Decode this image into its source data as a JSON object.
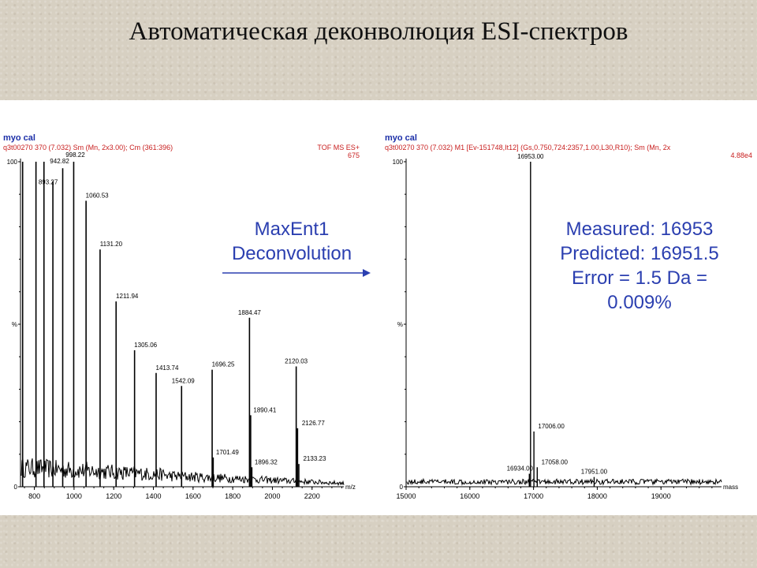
{
  "slide": {
    "title": "Автоматическая деконволюция ESI-спектров"
  },
  "middle": {
    "method_line1": "MaxEnt1",
    "method_line2": "Deconvolution"
  },
  "result": {
    "line1": "Measured:  16953",
    "line2": "Predicted:  16951.5",
    "line3": "Error = 1.5 Da =",
    "line4": "0.009%"
  },
  "left_spectrum": {
    "sample": "myo cal",
    "scan_info": "q3t00270  370 (7.032) Sm (Mn, 2x3.00); Cm (361:396)",
    "mode": "TOF MS ES+",
    "intensity": "675"
  },
  "right_spectrum": {
    "sample": "myo cal",
    "scan_info": "q3t00270  370 (7.032) M1 [Ev-151748,It12] (Gs,0.750,724:2357,1.00,L30,R10); Sm (Mn, 2x",
    "intensity": "4.88e4"
  },
  "colors": {
    "accent_blue": "#2b3fb0",
    "header_blue": "#1c2fa8",
    "header_red": "#c81e1e",
    "trace": "#000000",
    "page": "#d7d0c2"
  },
  "chart_data": [
    {
      "type": "line",
      "title": "",
      "xlabel": "m/z",
      "ylabel": "%",
      "xlim": [
        730,
        2360
      ],
      "ylim": [
        0,
        100
      ],
      "x_ticks": [
        800,
        1000,
        1200,
        1400,
        1600,
        1800,
        2000,
        2200
      ],
      "y_ticks": [
        {
          "value": 0,
          "label": "0"
        },
        {
          "value": 50,
          "label": "%"
        },
        {
          "value": 100,
          "label": "100"
        }
      ],
      "grid": false,
      "peaks": [
        {
          "x": 740.7,
          "y": 100
        },
        {
          "x": 808.0,
          "y": 100
        },
        {
          "x": 848.3,
          "y": 100
        },
        {
          "x": 893.27,
          "y": 94,
          "label": "893.27"
        },
        {
          "x": 942.82,
          "y": 98,
          "label": "942.82"
        },
        {
          "x": 998.22,
          "y": 100,
          "label": "998.22"
        },
        {
          "x": 1060.53,
          "y": 88,
          "label": "1060.53"
        },
        {
          "x": 1131.2,
          "y": 73,
          "label": "1131.20"
        },
        {
          "x": 1211.94,
          "y": 57,
          "label": "1211.94"
        },
        {
          "x": 1305.06,
          "y": 42,
          "label": "1305.06"
        },
        {
          "x": 1413.74,
          "y": 35,
          "label": "1413.74"
        },
        {
          "x": 1542.09,
          "y": 31,
          "label": "1542.09"
        },
        {
          "x": 1696.25,
          "y": 36,
          "label": "1696.25"
        },
        {
          "x": 1701.49,
          "y": 9,
          "label": "1701.49"
        },
        {
          "x": 1884.47,
          "y": 52,
          "label": "1884.47"
        },
        {
          "x": 1890.41,
          "y": 22,
          "label": "1890.41"
        },
        {
          "x": 1896.32,
          "y": 6,
          "label": "1896.32"
        },
        {
          "x": 2120.03,
          "y": 37,
          "label": "2120.03"
        },
        {
          "x": 2126.77,
          "y": 18,
          "label": "2126.77"
        },
        {
          "x": 2133.23,
          "y": 7,
          "label": "2133.23"
        }
      ]
    },
    {
      "type": "line",
      "title": "",
      "xlabel": "mass",
      "ylabel": "%",
      "xlim": [
        15000,
        19950
      ],
      "ylim": [
        0,
        100
      ],
      "x_ticks": [
        15000,
        16000,
        17000,
        18000,
        19000
      ],
      "y_ticks": [
        {
          "value": 0,
          "label": "0"
        },
        {
          "value": 50,
          "label": "%"
        },
        {
          "value": 100,
          "label": "100"
        }
      ],
      "grid": false,
      "peaks": [
        {
          "x": 16934.0,
          "y": 4,
          "label": "16934.00"
        },
        {
          "x": 16953.0,
          "y": 100,
          "label": "16953.00"
        },
        {
          "x": 17006.0,
          "y": 17,
          "label": "17006.00"
        },
        {
          "x": 17058.0,
          "y": 6,
          "label": "17058.00"
        },
        {
          "x": 17951.0,
          "y": 3,
          "label": "17951.00"
        }
      ]
    }
  ]
}
